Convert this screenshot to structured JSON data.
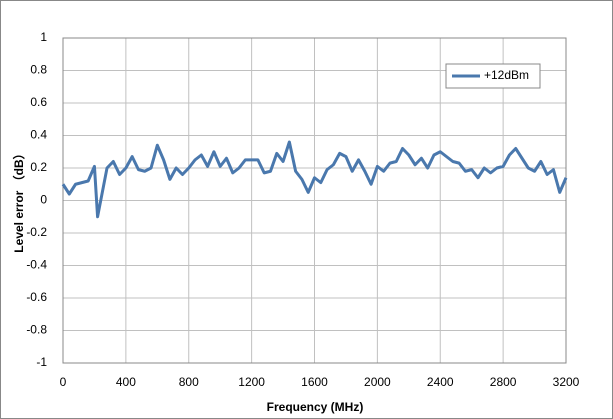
{
  "chart_data": {
    "type": "line",
    "x_label": "Frequency (MHz)",
    "y_label": "Level error （dB）",
    "x": [
      0,
      40,
      80,
      120,
      160,
      200,
      220,
      240,
      280,
      320,
      360,
      400,
      440,
      480,
      520,
      560,
      600,
      640,
      680,
      720,
      760,
      800,
      840,
      880,
      920,
      960,
      1000,
      1040,
      1080,
      1120,
      1160,
      1200,
      1240,
      1280,
      1320,
      1360,
      1400,
      1440,
      1480,
      1520,
      1560,
      1600,
      1640,
      1680,
      1720,
      1760,
      1800,
      1840,
      1880,
      1920,
      1960,
      2000,
      2040,
      2080,
      2120,
      2160,
      2200,
      2240,
      2280,
      2320,
      2360,
      2400,
      2440,
      2480,
      2520,
      2560,
      2600,
      2640,
      2680,
      2720,
      2760,
      2800,
      2840,
      2880,
      2920,
      2960,
      3000,
      3040,
      3080,
      3120,
      3160,
      3200
    ],
    "series": [
      {
        "name": "+12dBm",
        "color": "#4a78ad",
        "values": [
          0.1,
          0.04,
          0.1,
          0.11,
          0.12,
          0.21,
          -0.1,
          0.0,
          0.2,
          0.24,
          0.16,
          0.2,
          0.27,
          0.19,
          0.18,
          0.2,
          0.34,
          0.25,
          0.13,
          0.2,
          0.16,
          0.2,
          0.25,
          0.28,
          0.21,
          0.3,
          0.21,
          0.26,
          0.17,
          0.2,
          0.25,
          0.25,
          0.25,
          0.17,
          0.18,
          0.29,
          0.24,
          0.36,
          0.18,
          0.13,
          0.05,
          0.14,
          0.11,
          0.19,
          0.22,
          0.29,
          0.27,
          0.18,
          0.25,
          0.18,
          0.1,
          0.21,
          0.18,
          0.23,
          0.24,
          0.32,
          0.28,
          0.22,
          0.26,
          0.2,
          0.28,
          0.3,
          0.27,
          0.24,
          0.23,
          0.18,
          0.19,
          0.14,
          0.2,
          0.17,
          0.2,
          0.21,
          0.28,
          0.32,
          0.26,
          0.2,
          0.18,
          0.24,
          0.16,
          0.19,
          0.05,
          0.14
        ]
      }
    ],
    "xlim": [
      0,
      3200
    ],
    "xticks": [
      0,
      400,
      800,
      1200,
      1600,
      2000,
      2400,
      2800,
      3200
    ],
    "ylim": [
      -1,
      1
    ],
    "yticks": [
      -1,
      -0.8,
      -0.6,
      -0.4,
      -0.2,
      0,
      0.2,
      0.4,
      0.6,
      0.8,
      1
    ],
    "grid": true,
    "legend": "upper-right"
  }
}
